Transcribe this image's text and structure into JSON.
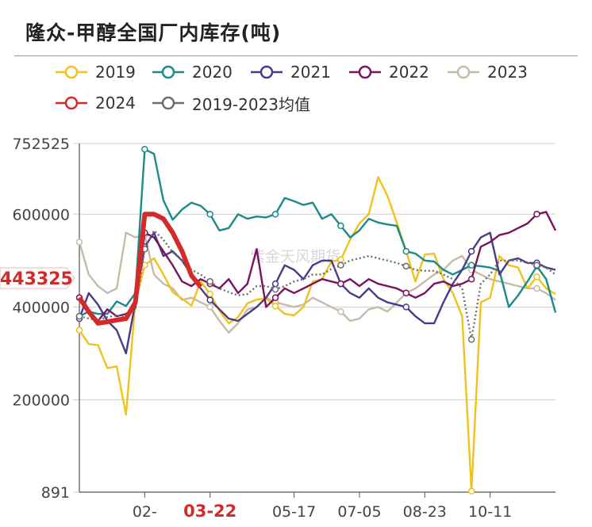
{
  "title": "隆众-甲醇全国厂内库存(吨)",
  "watermark": "紫金天风期货",
  "colors": {
    "2019": "#f3c21a",
    "2020": "#1a8a8a",
    "2021": "#4b3a8c",
    "2022": "#7a1360",
    "2023": "#c5bba8",
    "2024": "#d42a2a",
    "avg": "#6e6e6e",
    "highlight": "#d42a2a"
  },
  "chart_data": {
    "type": "line",
    "title": "隆众-甲醇全国厂内库存(吨)",
    "ylim": [
      891,
      752525
    ],
    "y_ticks": [
      "752525",
      "600000",
      "400000",
      "200000",
      "891"
    ],
    "x_ticks": [
      "02-",
      "03-22",
      "05-17",
      "07-05",
      "08-23",
      "10-11"
    ],
    "x_tick_weeks": [
      8,
      15,
      24,
      31,
      38,
      45
    ],
    "highlight_x_tick": "03-22",
    "current_value_label": "443325",
    "current_value": 443325,
    "legend_position": "top",
    "grid": "horizontal",
    "weeks": 52,
    "series": [
      {
        "name": "2019",
        "key": "2019",
        "values": [
          350000,
          320000,
          318000,
          268000,
          272000,
          168000,
          410000,
          490000,
          505000,
          470000,
          432000,
          418000,
          403000,
          455000,
          428000,
          392000,
          365000,
          378000,
          408000,
          416000,
          418000,
          402000,
          385000,
          382000,
          400000,
          455000,
          460000,
          498000,
          502000,
          545000,
          580000,
          600000,
          680000,
          640000,
          582000,
          520000,
          455000,
          513000,
          515000,
          460000,
          430000,
          380000,
          3000,
          410000,
          420000,
          510000,
          490000,
          485000,
          440000,
          465000,
          440000,
          428000
        ]
      },
      {
        "name": "2020",
        "key": "2020",
        "values": [
          380000,
          390000,
          385000,
          385000,
          412000,
          402000,
          430000,
          740000,
          730000,
          630000,
          588000,
          610000,
          625000,
          618000,
          600000,
          565000,
          570000,
          600000,
          590000,
          595000,
          593000,
          600000,
          635000,
          628000,
          620000,
          625000,
          590000,
          600000,
          575000,
          550000,
          565000,
          590000,
          582000,
          578000,
          575000,
          520000,
          515000,
          500000,
          498000,
          480000,
          470000,
          480000,
          490000,
          488000,
          485000,
          478000,
          400000,
          425000,
          455000,
          488000,
          460000,
          388000
        ]
      },
      {
        "name": "2021",
        "key": "2021",
        "values": [
          375000,
          430000,
          405000,
          370000,
          350000,
          300000,
          410000,
          530000,
          560000,
          510000,
          520000,
          500000,
          470000,
          440000,
          415000,
          395000,
          375000,
          370000,
          385000,
          400000,
          420000,
          450000,
          490000,
          480000,
          460000,
          490000,
          500000,
          500000,
          450000,
          430000,
          420000,
          440000,
          420000,
          410000,
          405000,
          400000,
          380000,
          365000,
          365000,
          410000,
          450000,
          480000,
          520000,
          550000,
          560000,
          470000,
          500000,
          505000,
          495000,
          495000,
          485000,
          480000
        ]
      },
      {
        "name": "2022",
        "key": "2022",
        "values": [
          420000,
          390000,
          370000,
          395000,
          380000,
          385000,
          400000,
          560000,
          550000,
          520000,
          490000,
          455000,
          445000,
          460000,
          450000,
          440000,
          460000,
          430000,
          450000,
          525000,
          400000,
          420000,
          440000,
          430000,
          440000,
          450000,
          460000,
          455000,
          450000,
          460000,
          445000,
          460000,
          450000,
          445000,
          440000,
          430000,
          420000,
          430000,
          450000,
          455000,
          445000,
          450000,
          460000,
          530000,
          540000,
          555000,
          560000,
          570000,
          580000,
          600000,
          605000,
          565000
        ]
      },
      {
        "name": "2023",
        "key": "2023",
        "values": [
          540000,
          470000,
          445000,
          430000,
          440000,
          560000,
          550000,
          555000,
          470000,
          450000,
          440000,
          415000,
          420000,
          410000,
          400000,
          370000,
          345000,
          365000,
          395000,
          400000,
          420000,
          410000,
          405000,
          400000,
          405000,
          420000,
          410000,
          400000,
          390000,
          370000,
          375000,
          395000,
          400000,
          390000,
          410000,
          430000,
          440000,
          455000,
          470000,
          480000,
          500000,
          510000,
          480000,
          470000,
          460000,
          455000,
          450000,
          445000,
          440000,
          440000,
          430000,
          415000
        ]
      },
      {
        "name": "2024",
        "key": "2024",
        "values": [
          420000,
          390000,
          365000,
          368000,
          372000,
          375000,
          410000,
          600000,
          600000,
          590000,
          560000,
          520000,
          468000,
          443325
        ]
      },
      {
        "name": "2019-2023均值",
        "key": "avg",
        "values": [
          380000,
          375000,
          372000,
          378000,
          382000,
          380000,
          395000,
          525000,
          565000,
          545000,
          518000,
          500000,
          480000,
          470000,
          455000,
          440000,
          432000,
          425000,
          428000,
          445000,
          445000,
          438000,
          445000,
          455000,
          460000,
          470000,
          470000,
          482000,
          490000,
          500000,
          505000,
          510000,
          505000,
          500000,
          495000,
          488000,
          480000,
          478000,
          478000,
          470000,
          460000,
          440000,
          330000,
          450000,
          470000,
          500000,
          500000,
          500000,
          495000,
          490000,
          485000,
          470000
        ]
      }
    ]
  }
}
